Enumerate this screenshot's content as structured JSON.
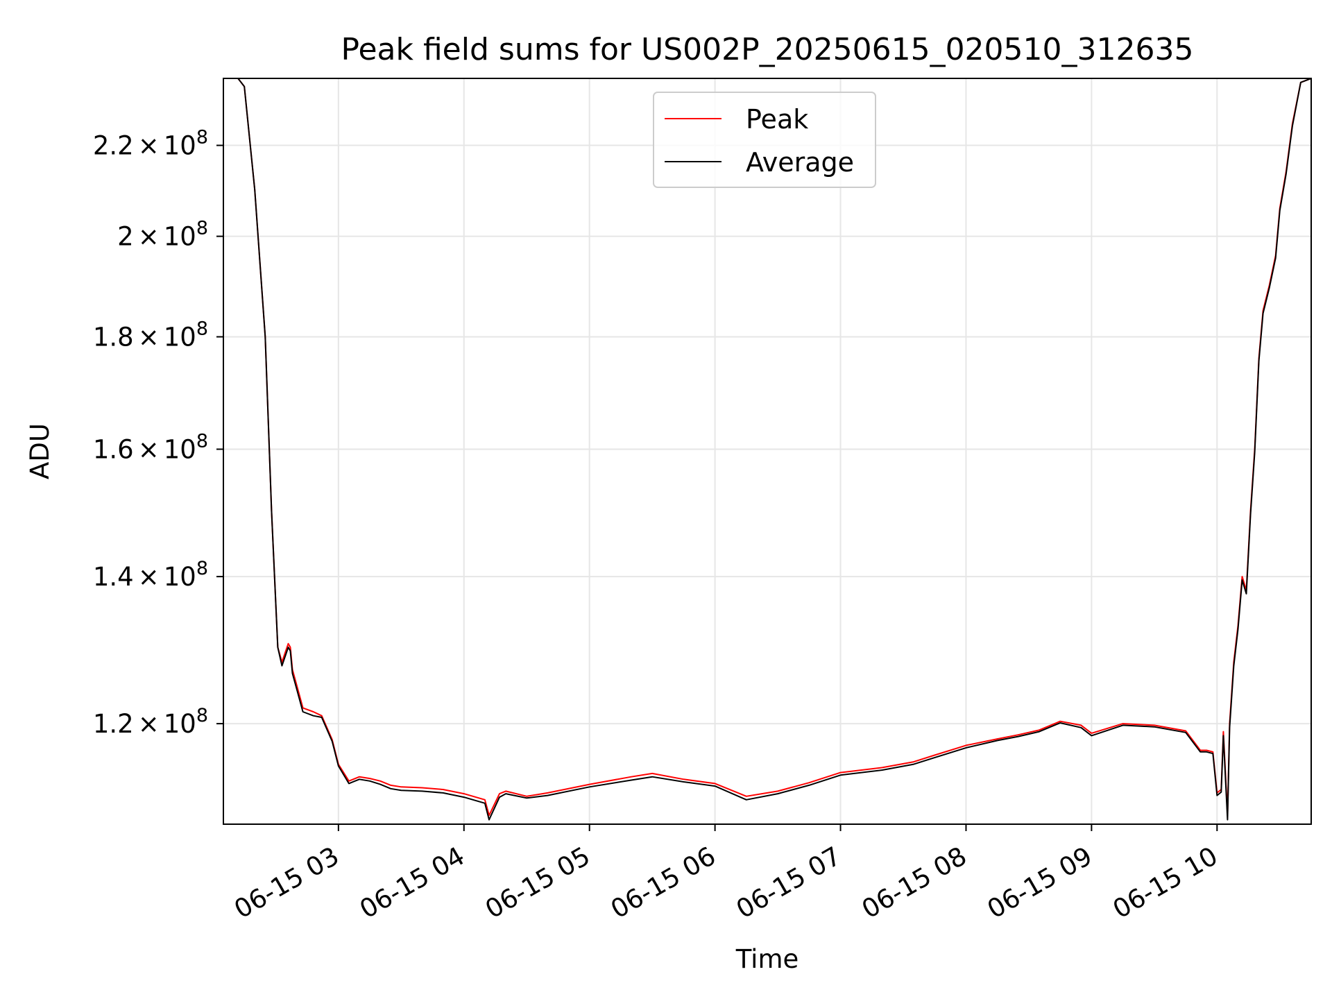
{
  "chart_data": {
    "type": "line",
    "title": "Peak field sums for US002P_20250615_020510_312635",
    "xlabel": "Time",
    "ylabel": "ADU",
    "x_axis": {
      "kind": "datetime",
      "range": [
        "2025-06-15T02:05",
        "2025-06-15T10:45"
      ],
      "ticks": [
        "2025-06-15T03:00",
        "2025-06-15T04:00",
        "2025-06-15T05:00",
        "2025-06-15T06:00",
        "2025-06-15T07:00",
        "2025-06-15T08:00",
        "2025-06-15T09:00",
        "2025-06-15T10:00"
      ],
      "tick_labels": [
        "06-15 03",
        "06-15 04",
        "06-15 05",
        "06-15 06",
        "06-15 07",
        "06-15 08",
        "06-15 09",
        "06-15 10"
      ]
    },
    "y_axis": {
      "scale": "log",
      "range": [
        108000000,
        236000000
      ],
      "ticks": [
        120000000,
        140000000,
        160000000,
        180000000,
        200000000,
        220000000
      ],
      "tick_labels": [
        {
          "mantissa": "1.2",
          "exponent": "8"
        },
        {
          "mantissa": "1.4",
          "exponent": "8"
        },
        {
          "mantissa": "1.6",
          "exponent": "8"
        },
        {
          "mantissa": "1.8",
          "exponent": "8"
        },
        {
          "mantissa": "2",
          "exponent": "8"
        },
        {
          "mantissa": "2.2",
          "exponent": "8"
        }
      ],
      "times_symbol": "×",
      "base": "10"
    },
    "grid": true,
    "legend": {
      "location": "upper center",
      "entries": [
        "Peak",
        "Average"
      ]
    },
    "series": [
      {
        "name": "Peak",
        "color": "#ff0000",
        "x": [
          "2025-06-15T02:05",
          "2025-06-15T02:12",
          "2025-06-15T02:15",
          "2025-06-15T02:20",
          "2025-06-15T02:25",
          "2025-06-15T02:28",
          "2025-06-15T02:31",
          "2025-06-15T02:33",
          "2025-06-15T02:36",
          "2025-06-15T02:37",
          "2025-06-15T02:38",
          "2025-06-15T02:40",
          "2025-06-15T02:43",
          "2025-06-15T02:48",
          "2025-06-15T02:52",
          "2025-06-15T02:57",
          "2025-06-15T03:00",
          "2025-06-15T03:05",
          "2025-06-15T03:10",
          "2025-06-15T03:15",
          "2025-06-15T03:20",
          "2025-06-15T03:25",
          "2025-06-15T03:30",
          "2025-06-15T03:40",
          "2025-06-15T03:50",
          "2025-06-15T04:00",
          "2025-06-15T04:10",
          "2025-06-15T04:12",
          "2025-06-15T04:17",
          "2025-06-15T04:20",
          "2025-06-15T04:30",
          "2025-06-15T04:40",
          "2025-06-15T05:00",
          "2025-06-15T05:20",
          "2025-06-15T05:30",
          "2025-06-15T05:45",
          "2025-06-15T06:00",
          "2025-06-15T06:15",
          "2025-06-15T06:30",
          "2025-06-15T06:45",
          "2025-06-15T07:00",
          "2025-06-15T07:20",
          "2025-06-15T07:35",
          "2025-06-15T07:45",
          "2025-06-15T08:00",
          "2025-06-15T08:15",
          "2025-06-15T08:25",
          "2025-06-15T08:35",
          "2025-06-15T08:45",
          "2025-06-15T08:55",
          "2025-06-15T09:00",
          "2025-06-15T09:15",
          "2025-06-15T09:30",
          "2025-06-15T09:45",
          "2025-06-15T09:52",
          "2025-06-15T09:55",
          "2025-06-15T09:58",
          "2025-06-15T10:00",
          "2025-06-15T10:02",
          "2025-06-15T10:03",
          "2025-06-15T10:05",
          "2025-06-15T10:06",
          "2025-06-15T10:08",
          "2025-06-15T10:10",
          "2025-06-15T10:12",
          "2025-06-15T10:14",
          "2025-06-15T10:16",
          "2025-06-15T10:18",
          "2025-06-15T10:20",
          "2025-06-15T10:22",
          "2025-06-15T10:25",
          "2025-06-15T10:28",
          "2025-06-15T10:30",
          "2025-06-15T10:33",
          "2025-06-15T10:36",
          "2025-06-15T10:40",
          "2025-06-15T10:45"
        ],
        "y": [
          236000000,
          236000000,
          234000000,
          210000000,
          180000000,
          150000000,
          130000000,
          128000000,
          130500000,
          130000000,
          127000000,
          125000000,
          122000000,
          121500000,
          121000000,
          118000000,
          115000000,
          113000000,
          113500000,
          113300000,
          113000000,
          112500000,
          112300000,
          112200000,
          112000000,
          111500000,
          110800000,
          109000000,
          111500000,
          111800000,
          111200000,
          111600000,
          112600000,
          113500000,
          113900000,
          113200000,
          112700000,
          111200000,
          111800000,
          112800000,
          114000000,
          114600000,
          115300000,
          116100000,
          117300000,
          118100000,
          118600000,
          119200000,
          120300000,
          119800000,
          118800000,
          120000000,
          119800000,
          119100000,
          116700000,
          116700000,
          116500000,
          111600000,
          112000000,
          119000000,
          109000000,
          120000000,
          128000000,
          133000000,
          140000000,
          138000000,
          150000000,
          160000000,
          176000000,
          185000000,
          190000000,
          196000000,
          206000000,
          214000000,
          225000000,
          235000000,
          236000000
        ]
      },
      {
        "name": "Average",
        "color": "#000000",
        "x": [
          "2025-06-15T02:05",
          "2025-06-15T02:12",
          "2025-06-15T02:15",
          "2025-06-15T02:20",
          "2025-06-15T02:25",
          "2025-06-15T02:28",
          "2025-06-15T02:31",
          "2025-06-15T02:33",
          "2025-06-15T02:36",
          "2025-06-15T02:37",
          "2025-06-15T02:38",
          "2025-06-15T02:40",
          "2025-06-15T02:43",
          "2025-06-15T02:48",
          "2025-06-15T02:52",
          "2025-06-15T02:57",
          "2025-06-15T03:00",
          "2025-06-15T03:05",
          "2025-06-15T03:10",
          "2025-06-15T03:15",
          "2025-06-15T03:20",
          "2025-06-15T03:25",
          "2025-06-15T03:30",
          "2025-06-15T03:40",
          "2025-06-15T03:50",
          "2025-06-15T04:00",
          "2025-06-15T04:10",
          "2025-06-15T04:12",
          "2025-06-15T04:17",
          "2025-06-15T04:20",
          "2025-06-15T04:30",
          "2025-06-15T04:40",
          "2025-06-15T05:00",
          "2025-06-15T05:20",
          "2025-06-15T05:30",
          "2025-06-15T05:45",
          "2025-06-15T06:00",
          "2025-06-15T06:15",
          "2025-06-15T06:30",
          "2025-06-15T06:45",
          "2025-06-15T07:00",
          "2025-06-15T07:20",
          "2025-06-15T07:35",
          "2025-06-15T07:45",
          "2025-06-15T08:00",
          "2025-06-15T08:15",
          "2025-06-15T08:25",
          "2025-06-15T08:35",
          "2025-06-15T08:45",
          "2025-06-15T08:55",
          "2025-06-15T09:00",
          "2025-06-15T09:15",
          "2025-06-15T09:30",
          "2025-06-15T09:45",
          "2025-06-15T09:52",
          "2025-06-15T09:55",
          "2025-06-15T09:58",
          "2025-06-15T10:00",
          "2025-06-15T10:02",
          "2025-06-15T10:03",
          "2025-06-15T10:05",
          "2025-06-15T10:06",
          "2025-06-15T10:08",
          "2025-06-15T10:10",
          "2025-06-15T10:12",
          "2025-06-15T10:14",
          "2025-06-15T10:16",
          "2025-06-15T10:18",
          "2025-06-15T10:20",
          "2025-06-15T10:22",
          "2025-06-15T10:25",
          "2025-06-15T10:28",
          "2025-06-15T10:30",
          "2025-06-15T10:33",
          "2025-06-15T10:36",
          "2025-06-15T10:40",
          "2025-06-15T10:45"
        ],
        "y": [
          236000000,
          236000000,
          234000000,
          210000000,
          180000000,
          150000000,
          130000000,
          127500000,
          130000000,
          129500000,
          126500000,
          124500000,
          121500000,
          121000000,
          120800000,
          117800000,
          114800000,
          112700000,
          113200000,
          113000000,
          112600000,
          112100000,
          111900000,
          111800000,
          111600000,
          111100000,
          110400000,
          108500000,
          111100000,
          111500000,
          111000000,
          111300000,
          112300000,
          113100000,
          113500000,
          112900000,
          112400000,
          110800000,
          111500000,
          112500000,
          113700000,
          114300000,
          115000000,
          115800000,
          117000000,
          117900000,
          118400000,
          119000000,
          120100000,
          119500000,
          118500000,
          119800000,
          119600000,
          118900000,
          116500000,
          116500000,
          116300000,
          111300000,
          111700000,
          118500000,
          108500000,
          119500000,
          127500000,
          132500000,
          139500000,
          137500000,
          149500000,
          159500000,
          175500000,
          184500000,
          189500000,
          195500000,
          205500000,
          213500000,
          224500000,
          235000000,
          236000000
        ]
      }
    ]
  }
}
